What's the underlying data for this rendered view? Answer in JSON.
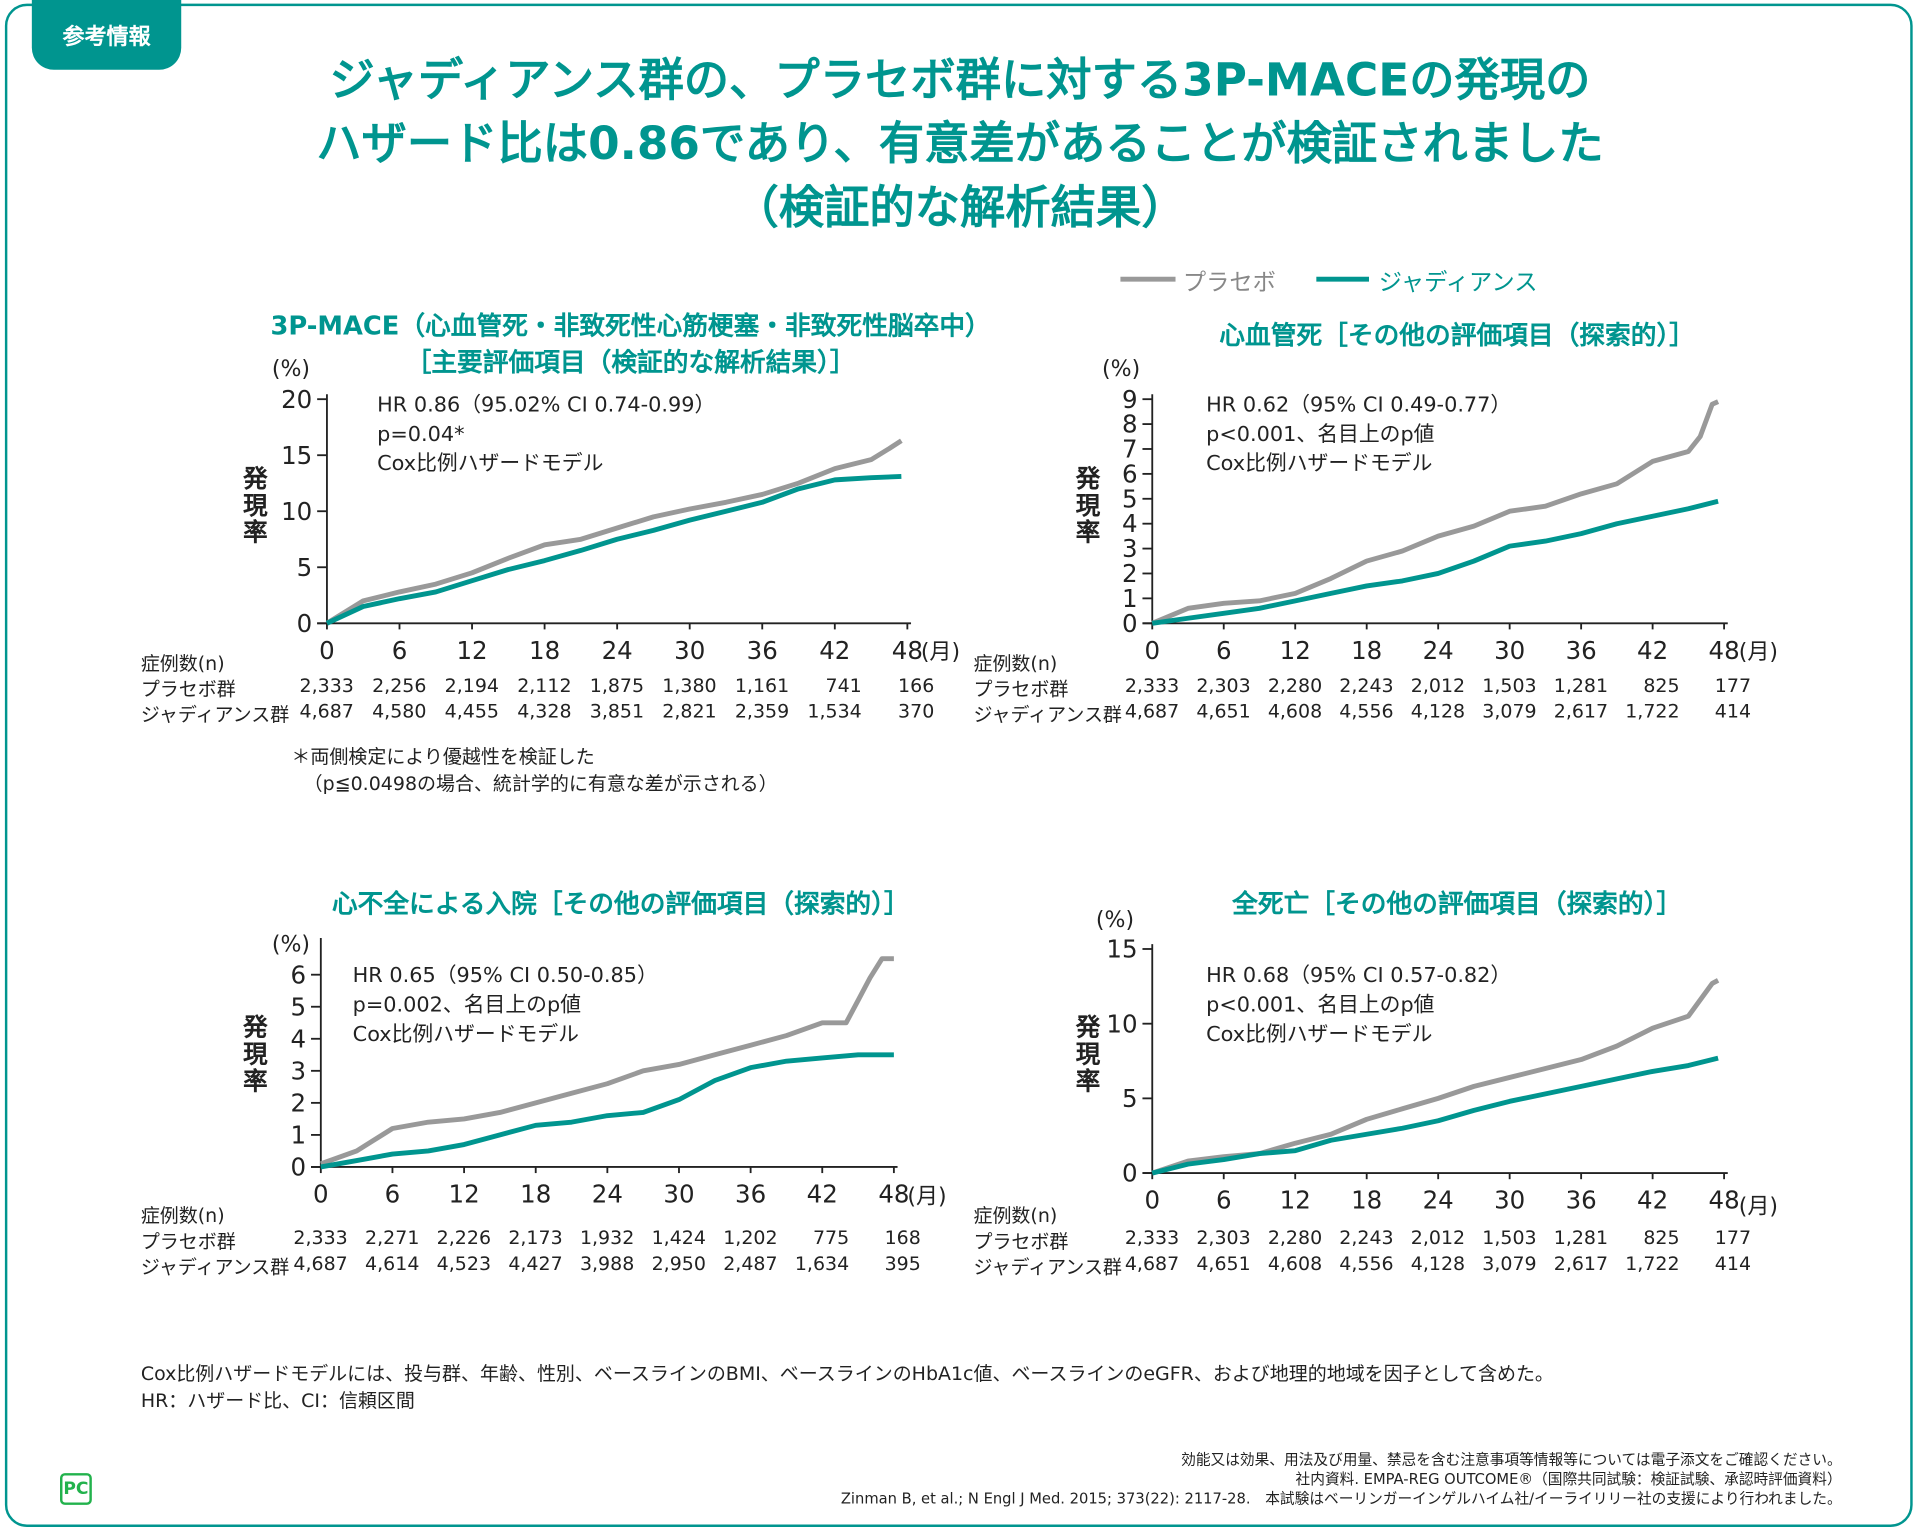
{
  "tab_label": "参考情報",
  "title_lines": [
    "ジャディアンス群の、プラセボ群に対する3P-MACEの発現の",
    "ハザード比は0.86であり、有意差があることが検証されました",
    "（検証的な解析結果）"
  ],
  "legend": {
    "placebo": "プラセボ",
    "jardiance": "ジャディアンス"
  },
  "colors": {
    "placebo": "#999999",
    "jardiance": "#00958f",
    "accent": "#00958f"
  },
  "y_unit": "(%)",
  "x_unit": "(月)",
  "y_axis_label": "発現率",
  "risk_header": "症例数(n)",
  "risk_row_labels": [
    "プラセボ群",
    "ジャディアンス群"
  ],
  "chart_data": [
    {
      "type": "line",
      "title": "3P-MACE（心血管死・非致死性心筋梗塞・非致死性脳卒中）",
      "subtitle": "［主要評価項目（検証的な解析結果）］",
      "annotations": [
        "HR 0.86（95.02% CI 0.74-0.99）",
        "p=0.04*",
        "Cox比例ハザードモデル"
      ],
      "xlabel": "月",
      "ylabel": "発現率 (%)",
      "xlim": [
        0,
        48
      ],
      "ylim": [
        0,
        20
      ],
      "xticks": [
        0,
        6,
        12,
        18,
        24,
        30,
        36,
        42,
        48
      ],
      "yticks": [
        0,
        5,
        10,
        15,
        20
      ],
      "series": [
        {
          "name": "プラセボ",
          "x": [
            0,
            3,
            6,
            9,
            12,
            15,
            18,
            21,
            24,
            27,
            30,
            33,
            36,
            39,
            42,
            45,
            46.5,
            47.5
          ],
          "y": [
            0,
            2,
            2.8,
            3.5,
            4.5,
            5.8,
            7,
            7.5,
            8.5,
            9.5,
            10.2,
            10.8,
            11.5,
            12.5,
            13.8,
            14.6,
            15.6,
            16.3
          ]
        },
        {
          "name": "ジャディアンス",
          "x": [
            0,
            3,
            6,
            9,
            12,
            15,
            18,
            21,
            24,
            27,
            30,
            33,
            36,
            39,
            42,
            45,
            47.5
          ],
          "y": [
            0,
            1.5,
            2.2,
            2.8,
            3.8,
            4.8,
            5.6,
            6.5,
            7.5,
            8.3,
            9.2,
            10,
            10.8,
            12,
            12.8,
            13,
            13.1
          ]
        }
      ],
      "risk_table": {
        "placebo": [
          "2,333",
          "2,256",
          "2,194",
          "2,112",
          "1,875",
          "1,380",
          "1,161",
          "741",
          "166"
        ],
        "jardiance": [
          "4,687",
          "4,580",
          "4,455",
          "4,328",
          "3,851",
          "2,821",
          "2,359",
          "1,534",
          "370"
        ]
      },
      "footnotes": [
        "＊両側検定により優越性を検証した",
        "（p≦0.0498の場合、統計学的に有意な差が示される）"
      ]
    },
    {
      "type": "line",
      "title": "心血管死［その他の評価項目（探索的）］",
      "annotations": [
        "HR 0.62（95% CI 0.49-0.77）",
        "p<0.001、名目上のp値",
        "Cox比例ハザードモデル"
      ],
      "xlabel": "月",
      "ylabel": "発現率 (%)",
      "xlim": [
        0,
        48
      ],
      "ylim": [
        0,
        9
      ],
      "xticks": [
        0,
        6,
        12,
        18,
        24,
        30,
        36,
        42,
        48
      ],
      "yticks": [
        0,
        1,
        2,
        3,
        4,
        5,
        6,
        7,
        8,
        9
      ],
      "series": [
        {
          "name": "プラセボ",
          "x": [
            0,
            3,
            6,
            9,
            12,
            15,
            18,
            21,
            24,
            27,
            30,
            33,
            36,
            39,
            42,
            45,
            46,
            47,
            47.5
          ],
          "y": [
            0,
            0.6,
            0.8,
            0.9,
            1.2,
            1.8,
            2.5,
            2.9,
            3.5,
            3.9,
            4.5,
            4.7,
            5.2,
            5.6,
            6.5,
            6.9,
            7.5,
            8.8,
            8.9
          ]
        },
        {
          "name": "ジャディアンス",
          "x": [
            0,
            3,
            6,
            9,
            12,
            15,
            18,
            21,
            24,
            27,
            30,
            33,
            36,
            39,
            42,
            45,
            47.5
          ],
          "y": [
            0,
            0.2,
            0.4,
            0.6,
            0.9,
            1.2,
            1.5,
            1.7,
            2,
            2.5,
            3.1,
            3.3,
            3.6,
            4,
            4.3,
            4.6,
            4.9
          ]
        }
      ],
      "risk_table": {
        "placebo": [
          "2,333",
          "2,303",
          "2,280",
          "2,243",
          "2,012",
          "1,503",
          "1,281",
          "825",
          "177"
        ],
        "jardiance": [
          "4,687",
          "4,651",
          "4,608",
          "4,556",
          "4,128",
          "3,079",
          "2,617",
          "1,722",
          "414"
        ]
      }
    },
    {
      "type": "line",
      "title": "心不全による入院［その他の評価項目（探索的）］",
      "annotations": [
        "HR 0.65（95% CI 0.50-0.85）",
        "p=0.002、名目上のp値",
        "Cox比例ハザードモデル"
      ],
      "xlabel": "月",
      "ylabel": "発現率 (%)",
      "xlim": [
        0,
        48
      ],
      "ylim": [
        0,
        6
      ],
      "xticks": [
        0,
        6,
        12,
        18,
        24,
        30,
        36,
        42,
        48
      ],
      "yticks": [
        0,
        1,
        2,
        3,
        4,
        5,
        6
      ],
      "series": [
        {
          "name": "プラセボ",
          "x": [
            0,
            3,
            6,
            9,
            12,
            15,
            18,
            21,
            24,
            27,
            30,
            33,
            36,
            39,
            42,
            44,
            45,
            46,
            47,
            48
          ],
          "y": [
            0.1,
            0.5,
            1.2,
            1.4,
            1.5,
            1.7,
            2,
            2.3,
            2.6,
            3,
            3.2,
            3.5,
            3.8,
            4.1,
            4.5,
            4.5,
            5.2,
            5.9,
            6.5,
            6.5
          ]
        },
        {
          "name": "ジャディアンス",
          "x": [
            0,
            3,
            6,
            9,
            12,
            15,
            18,
            21,
            24,
            27,
            30,
            33,
            36,
            39,
            42,
            45,
            48
          ],
          "y": [
            0,
            0.2,
            0.4,
            0.5,
            0.7,
            1,
            1.3,
            1.4,
            1.6,
            1.7,
            2.1,
            2.7,
            3.1,
            3.3,
            3.4,
            3.5,
            3.5
          ]
        }
      ],
      "risk_table": {
        "placebo": [
          "2,333",
          "2,271",
          "2,226",
          "2,173",
          "1,932",
          "1,424",
          "1,202",
          "775",
          "168"
        ],
        "jardiance": [
          "4,687",
          "4,614",
          "4,523",
          "4,427",
          "3,988",
          "2,950",
          "2,487",
          "1,634",
          "395"
        ]
      }
    },
    {
      "type": "line",
      "title": "全死亡［その他の評価項目（探索的）］",
      "annotations": [
        "HR 0.68（95% CI 0.57-0.82）",
        "p<0.001、名目上のp値",
        "Cox比例ハザードモデル"
      ],
      "xlabel": "月",
      "ylabel": "発現率 (%)",
      "xlim": [
        0,
        48
      ],
      "ylim": [
        0,
        15
      ],
      "xticks": [
        0,
        6,
        12,
        18,
        24,
        30,
        36,
        42,
        48
      ],
      "yticks": [
        0,
        5,
        10,
        15
      ],
      "series": [
        {
          "name": "プラセボ",
          "x": [
            0,
            3,
            6,
            9,
            12,
            15,
            18,
            21,
            24,
            27,
            30,
            33,
            36,
            39,
            42,
            45,
            47,
            47.5
          ],
          "y": [
            0,
            0.8,
            1.1,
            1.3,
            2,
            2.6,
            3.6,
            4.3,
            5,
            5.8,
            6.4,
            7,
            7.6,
            8.5,
            9.7,
            10.5,
            12.7,
            12.9
          ]
        },
        {
          "name": "ジャディアンス",
          "x": [
            0,
            3,
            6,
            9,
            12,
            15,
            18,
            21,
            24,
            27,
            30,
            33,
            36,
            39,
            42,
            45,
            47.5
          ],
          "y": [
            0,
            0.6,
            0.9,
            1.3,
            1.5,
            2.2,
            2.6,
            3,
            3.5,
            4.2,
            4.8,
            5.3,
            5.8,
            6.3,
            6.8,
            7.2,
            7.7
          ]
        }
      ],
      "risk_table": {
        "placebo": [
          "2,333",
          "2,303",
          "2,280",
          "2,243",
          "2,012",
          "1,503",
          "1,281",
          "825",
          "177"
        ],
        "jardiance": [
          "4,687",
          "4,651",
          "4,608",
          "4,556",
          "4,128",
          "3,079",
          "2,617",
          "1,722",
          "414"
        ]
      }
    }
  ],
  "bottom_notes": [
    "Cox比例ハザードモデルには、投与群、年齢、性別、ベースラインのBMI、ベースラインのHbA1c値、ベースラインのeGFR、および地理的地域を因子として含めた。",
    "HR：ハザード比、CI：信頼区間"
  ],
  "footer": [
    "効能又は効果、用法及び用量、禁忌を含む注意事項等情報等については電子添文をご確認ください。",
    "社内資料. EMPA-REG OUTCOME®（国際共同試験：検証試験、承認時評価資料）",
    "Zinman B, et al.; N Engl J Med. 2015; 373(22): 2117-28.　本試験はベーリンガーインゲルハイム社/イーライリリー社の支援により行われました。"
  ],
  "logo_text": "PC"
}
